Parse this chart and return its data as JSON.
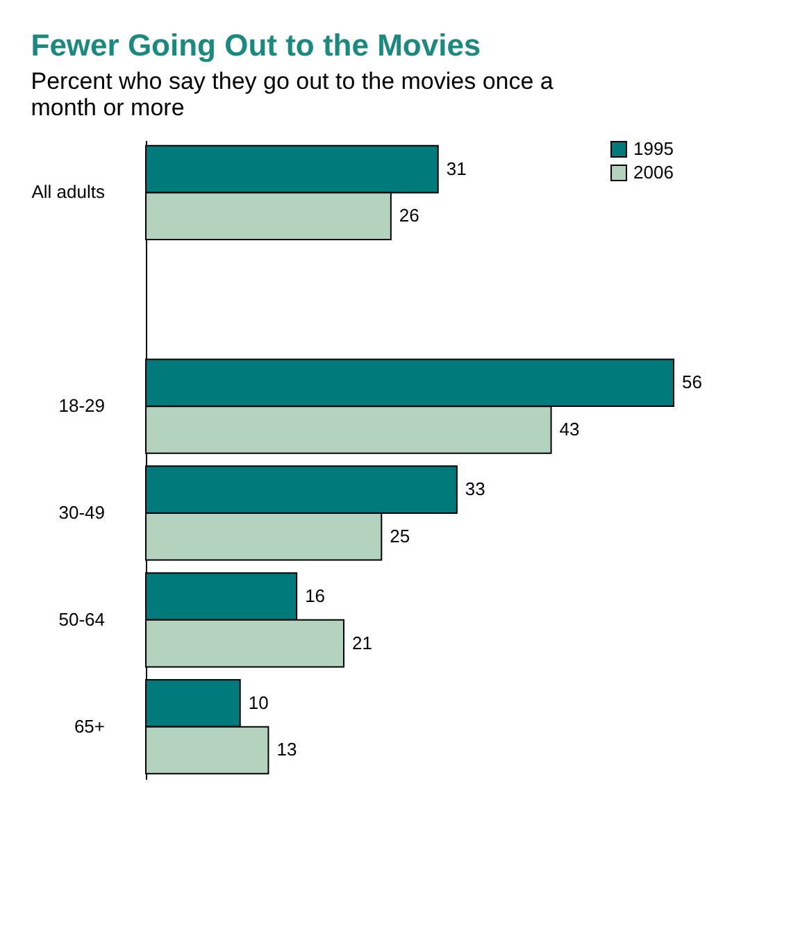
{
  "chart_data": {
    "type": "bar",
    "orientation": "horizontal",
    "title": "Fewer Going Out to the Movies",
    "subtitle": "Percent who say they go out to the movies once a month or more",
    "categories": [
      "All adults",
      null,
      "18-29",
      "30-49",
      "50-64",
      "65+"
    ],
    "series": [
      {
        "name": "1995",
        "color": "#007a7a",
        "values": [
          31,
          null,
          56,
          33,
          16,
          10
        ]
      },
      {
        "name": "2006",
        "color": "#b3d3bf",
        "values": [
          26,
          null,
          43,
          25,
          21,
          13
        ]
      }
    ],
    "data_labels": true,
    "legend": "top right",
    "grid": false,
    "tick_labels": "y"
  }
}
